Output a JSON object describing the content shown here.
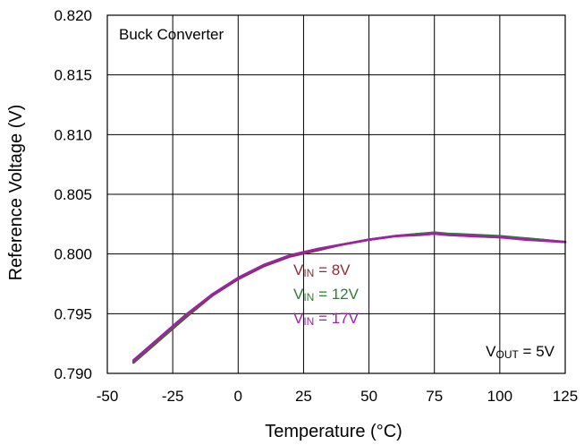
{
  "chart_data": {
    "type": "line",
    "title": "",
    "xlabel": "Temperature (°C)",
    "ylabel": "Reference Voltage (V)",
    "xlim": [
      -50,
      125
    ],
    "ylim": [
      0.79,
      0.82
    ],
    "x_ticks": [
      -50,
      -25,
      0,
      25,
      50,
      75,
      100,
      125
    ],
    "x_tick_labels": [
      "-50",
      "-25",
      "0",
      "25",
      "50",
      "75",
      "100",
      "125"
    ],
    "y_ticks": [
      0.79,
      0.795,
      0.8,
      0.805,
      0.81,
      0.815,
      0.82
    ],
    "y_tick_labels": [
      "0.790",
      "0.795",
      "0.800",
      "0.805",
      "0.810",
      "0.815",
      "0.820"
    ],
    "grid": true,
    "annotations": {
      "top_left": "Buck Converter",
      "bottom_right": {
        "main": "V",
        "sub": "OUT",
        "rest": " = 5V"
      }
    },
    "series": [
      {
        "legend": {
          "main": "V",
          "sub": "IN",
          "rest": " = 8V"
        },
        "color": "#8b2e35",
        "x": [
          -40,
          -30,
          -20,
          -10,
          0,
          10,
          20,
          30,
          40,
          50,
          60,
          70,
          75,
          80,
          90,
          100,
          110,
          125
        ],
        "values": [
          0.7909,
          0.7928,
          0.7947,
          0.7965,
          0.7979,
          0.799,
          0.7998,
          0.8003,
          0.8008,
          0.8012,
          0.8015,
          0.8017,
          0.8017,
          0.8016,
          0.8015,
          0.8014,
          0.8013,
          0.801
        ]
      },
      {
        "legend": {
          "main": "V",
          "sub": "IN",
          "rest": " = 12V"
        },
        "color": "#2e7d3a",
        "x": [
          -40,
          -30,
          -20,
          -10,
          0,
          10,
          20,
          30,
          40,
          50,
          60,
          70,
          75,
          80,
          90,
          100,
          110,
          125
        ],
        "values": [
          0.791,
          0.7929,
          0.7948,
          0.7966,
          0.798,
          0.7991,
          0.7999,
          0.8004,
          0.8008,
          0.8012,
          0.8015,
          0.8017,
          0.8018,
          0.8017,
          0.8016,
          0.8015,
          0.8013,
          0.801
        ]
      },
      {
        "legend": {
          "main": "V",
          "sub": "IN",
          "rest": " = 17V"
        },
        "color": "#a020a8",
        "x": [
          -40,
          -30,
          -20,
          -10,
          0,
          10,
          20,
          30,
          40,
          50,
          60,
          70,
          75,
          80,
          90,
          100,
          110,
          125
        ],
        "values": [
          0.7911,
          0.793,
          0.7949,
          0.7966,
          0.798,
          0.7991,
          0.7999,
          0.8004,
          0.8008,
          0.8012,
          0.8015,
          0.8016,
          0.8017,
          0.8016,
          0.8015,
          0.8014,
          0.8012,
          0.801
        ]
      }
    ]
  }
}
